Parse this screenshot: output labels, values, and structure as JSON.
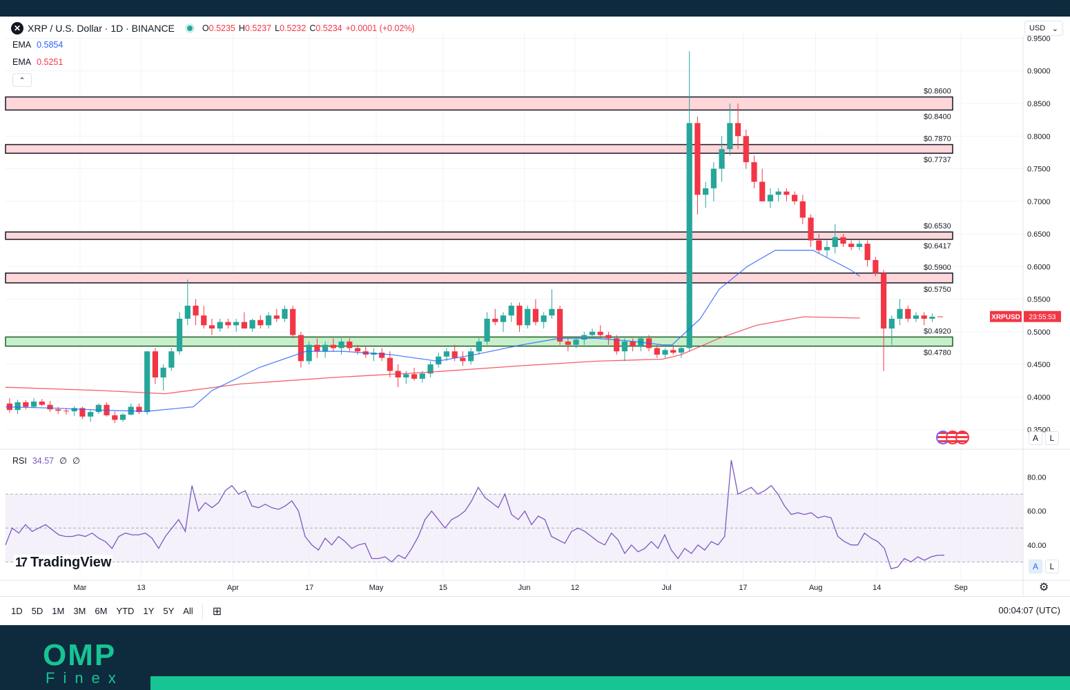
{
  "header": {
    "symbol_icon": "xrp-logo",
    "symbol_glyph": "✕",
    "title": "XRP / U.S. Dollar · 1D · BINANCE",
    "ohlc": {
      "o_label": "O",
      "o": "0.5235",
      "h_label": "H",
      "h": "0.5237",
      "l_label": "L",
      "l": "0.5232",
      "c_label": "C",
      "c": "0.5234",
      "change": "+0.0001 (+0.02%)"
    },
    "currency": "USD",
    "currency_chevron": "⌄"
  },
  "indicators": {
    "ema1": {
      "label": "EMA",
      "value": "0.5854",
      "color": "#2962ff"
    },
    "ema2": {
      "label": "EMA",
      "value": "0.5251",
      "color": "#f23645"
    },
    "collapse_glyph": "⌃",
    "rsi": {
      "label": "RSI",
      "value": "34.57",
      "extra1": "∅",
      "extra2": "∅",
      "color": "#7e57c2"
    }
  },
  "price_badge": {
    "symbol": "XRPUSD",
    "countdown": "23:55:53",
    "color": "#f23645"
  },
  "scale_buttons": {
    "auto": "A",
    "log": "L"
  },
  "watermark": "TradingView",
  "watermark_mark": "17",
  "bottom_bar": {
    "ranges": [
      "1D",
      "5D",
      "1M",
      "3M",
      "6M",
      "YTD",
      "1Y",
      "5Y",
      "All"
    ],
    "calendar_icon": "calendar-range-icon",
    "calendar_glyph": "⊞",
    "clock": "00:04:07 (UTC)"
  },
  "settings_glyph": "⚙",
  "brand": {
    "name": "OMP",
    "sub": "Finex"
  },
  "colors": {
    "up": "#26a69a",
    "down": "#f23645",
    "resistance_fill": "#ffd6d9",
    "support_fill": "#c8efcc"
  },
  "chart_data": {
    "type": "candlestick",
    "title": "XRP / U.S. Dollar · 1D · BINANCE",
    "y_axis": {
      "ticks": [
        "0.9500",
        "0.9000",
        "0.8500",
        "0.8000",
        "0.7500",
        "0.7000",
        "0.6500",
        "0.6000",
        "0.5500",
        "0.5000",
        "0.4500",
        "0.4000",
        "0.3500"
      ],
      "ylim": [
        0.32,
        0.96
      ]
    },
    "x_axis": {
      "ticks": [
        "Mar",
        "13",
        "Apr",
        "17",
        "May",
        "15",
        "Jun",
        "12",
        "Jul",
        "17",
        "Aug",
        "14",
        "Sep"
      ]
    },
    "zones": [
      {
        "kind": "resistance",
        "top": 0.86,
        "bottom": 0.84,
        "top_label": "$0.8600",
        "bottom_label": "$0.8400"
      },
      {
        "kind": "resistance",
        "top": 0.787,
        "bottom": 0.7737,
        "top_label": "$0.7870",
        "bottom_label": "$0.7737"
      },
      {
        "kind": "resistance",
        "top": 0.653,
        "bottom": 0.6417,
        "top_label": "$0.6530",
        "bottom_label": "$0.6417"
      },
      {
        "kind": "resistance",
        "top": 0.59,
        "bottom": 0.575,
        "top_label": "$0.5900",
        "bottom_label": "$0.5750"
      },
      {
        "kind": "support",
        "top": 0.492,
        "bottom": 0.478,
        "top_label": "$0.4920",
        "bottom_label": "$0.4780"
      }
    ],
    "ema_fast_path": [
      [
        0.0,
        0.385
      ],
      [
        0.05,
        0.383
      ],
      [
        0.1,
        0.38
      ],
      [
        0.15,
        0.378
      ],
      [
        0.2,
        0.385
      ],
      [
        0.22,
        0.41
      ],
      [
        0.27,
        0.445
      ],
      [
        0.32,
        0.47
      ],
      [
        0.36,
        0.47
      ],
      [
        0.41,
        0.465
      ],
      [
        0.46,
        0.455
      ],
      [
        0.5,
        0.465
      ],
      [
        0.55,
        0.48
      ],
      [
        0.59,
        0.49
      ],
      [
        0.63,
        0.49
      ],
      [
        0.67,
        0.485
      ],
      [
        0.7,
        0.48
      ],
      [
        0.71,
        0.48
      ],
      [
        0.74,
        0.52
      ],
      [
        0.76,
        0.565
      ],
      [
        0.79,
        0.6
      ],
      [
        0.82,
        0.625
      ],
      [
        0.84,
        0.625
      ],
      [
        0.86,
        0.625
      ],
      [
        0.88,
        0.61
      ],
      [
        0.9,
        0.595
      ],
      [
        0.91,
        0.585
      ]
    ],
    "ema_slow_path": [
      [
        0.0,
        0.415
      ],
      [
        0.1,
        0.41
      ],
      [
        0.17,
        0.405
      ],
      [
        0.25,
        0.42
      ],
      [
        0.35,
        0.43
      ],
      [
        0.45,
        0.438
      ],
      [
        0.55,
        0.448
      ],
      [
        0.63,
        0.455
      ],
      [
        0.7,
        0.458
      ],
      [
        0.72,
        0.465
      ],
      [
        0.76,
        0.49
      ],
      [
        0.8,
        0.51
      ],
      [
        0.85,
        0.523
      ],
      [
        0.91,
        0.521
      ]
    ],
    "candles": [
      {
        "o": 0.39,
        "h": 0.398,
        "l": 0.376,
        "c": 0.38
      },
      {
        "o": 0.38,
        "h": 0.396,
        "l": 0.374,
        "c": 0.392
      },
      {
        "o": 0.392,
        "h": 0.395,
        "l": 0.381,
        "c": 0.385
      },
      {
        "o": 0.385,
        "h": 0.398,
        "l": 0.383,
        "c": 0.393
      },
      {
        "o": 0.393,
        "h": 0.397,
        "l": 0.386,
        "c": 0.388
      },
      {
        "o": 0.388,
        "h": 0.394,
        "l": 0.377,
        "c": 0.381
      },
      {
        "o": 0.381,
        "h": 0.385,
        "l": 0.374,
        "c": 0.379
      },
      {
        "o": 0.379,
        "h": 0.383,
        "l": 0.373,
        "c": 0.378
      },
      {
        "o": 0.378,
        "h": 0.386,
        "l": 0.371,
        "c": 0.383
      },
      {
        "o": 0.383,
        "h": 0.385,
        "l": 0.366,
        "c": 0.37
      },
      {
        "o": 0.37,
        "h": 0.38,
        "l": 0.362,
        "c": 0.377
      },
      {
        "o": 0.377,
        "h": 0.39,
        "l": 0.374,
        "c": 0.388
      },
      {
        "o": 0.388,
        "h": 0.392,
        "l": 0.37,
        "c": 0.372
      },
      {
        "o": 0.372,
        "h": 0.378,
        "l": 0.36,
        "c": 0.365
      },
      {
        "o": 0.365,
        "h": 0.375,
        "l": 0.362,
        "c": 0.373
      },
      {
        "o": 0.373,
        "h": 0.39,
        "l": 0.372,
        "c": 0.385
      },
      {
        "o": 0.385,
        "h": 0.39,
        "l": 0.374,
        "c": 0.377
      },
      {
        "o": 0.377,
        "h": 0.47,
        "l": 0.373,
        "c": 0.47
      },
      {
        "o": 0.47,
        "h": 0.475,
        "l": 0.42,
        "c": 0.43
      },
      {
        "o": 0.43,
        "h": 0.45,
        "l": 0.41,
        "c": 0.445
      },
      {
        "o": 0.445,
        "h": 0.475,
        "l": 0.44,
        "c": 0.47
      },
      {
        "o": 0.47,
        "h": 0.53,
        "l": 0.465,
        "c": 0.52
      },
      {
        "o": 0.52,
        "h": 0.58,
        "l": 0.51,
        "c": 0.54
      },
      {
        "o": 0.54,
        "h": 0.55,
        "l": 0.51,
        "c": 0.525
      },
      {
        "o": 0.525,
        "h": 0.54,
        "l": 0.505,
        "c": 0.51
      },
      {
        "o": 0.51,
        "h": 0.52,
        "l": 0.495,
        "c": 0.505
      },
      {
        "o": 0.505,
        "h": 0.52,
        "l": 0.5,
        "c": 0.515
      },
      {
        "o": 0.515,
        "h": 0.52,
        "l": 0.505,
        "c": 0.51
      },
      {
        "o": 0.51,
        "h": 0.52,
        "l": 0.5,
        "c": 0.515
      },
      {
        "o": 0.515,
        "h": 0.53,
        "l": 0.505,
        "c": 0.505
      },
      {
        "o": 0.505,
        "h": 0.52,
        "l": 0.5,
        "c": 0.518
      },
      {
        "o": 0.518,
        "h": 0.525,
        "l": 0.505,
        "c": 0.51
      },
      {
        "o": 0.51,
        "h": 0.53,
        "l": 0.505,
        "c": 0.525
      },
      {
        "o": 0.525,
        "h": 0.535,
        "l": 0.515,
        "c": 0.52
      },
      {
        "o": 0.52,
        "h": 0.54,
        "l": 0.515,
        "c": 0.535
      },
      {
        "o": 0.535,
        "h": 0.54,
        "l": 0.49,
        "c": 0.495
      },
      {
        "o": 0.495,
        "h": 0.5,
        "l": 0.445,
        "c": 0.455
      },
      {
        "o": 0.455,
        "h": 0.485,
        "l": 0.45,
        "c": 0.48
      },
      {
        "o": 0.48,
        "h": 0.49,
        "l": 0.46,
        "c": 0.47
      },
      {
        "o": 0.47,
        "h": 0.485,
        "l": 0.46,
        "c": 0.48
      },
      {
        "o": 0.48,
        "h": 0.49,
        "l": 0.47,
        "c": 0.475
      },
      {
        "o": 0.475,
        "h": 0.49,
        "l": 0.465,
        "c": 0.485
      },
      {
        "o": 0.485,
        "h": 0.49,
        "l": 0.47,
        "c": 0.475
      },
      {
        "o": 0.475,
        "h": 0.48,
        "l": 0.465,
        "c": 0.47
      },
      {
        "o": 0.47,
        "h": 0.478,
        "l": 0.46,
        "c": 0.465
      },
      {
        "o": 0.465,
        "h": 0.475,
        "l": 0.455,
        "c": 0.468
      },
      {
        "o": 0.468,
        "h": 0.475,
        "l": 0.455,
        "c": 0.46
      },
      {
        "o": 0.46,
        "h": 0.47,
        "l": 0.43,
        "c": 0.44
      },
      {
        "o": 0.44,
        "h": 0.45,
        "l": 0.415,
        "c": 0.43
      },
      {
        "o": 0.43,
        "h": 0.44,
        "l": 0.42,
        "c": 0.435
      },
      {
        "o": 0.435,
        "h": 0.445,
        "l": 0.425,
        "c": 0.428
      },
      {
        "o": 0.428,
        "h": 0.44,
        "l": 0.422,
        "c": 0.436
      },
      {
        "o": 0.436,
        "h": 0.455,
        "l": 0.43,
        "c": 0.45
      },
      {
        "o": 0.45,
        "h": 0.468,
        "l": 0.445,
        "c": 0.462
      },
      {
        "o": 0.462,
        "h": 0.475,
        "l": 0.455,
        "c": 0.47
      },
      {
        "o": 0.47,
        "h": 0.48,
        "l": 0.455,
        "c": 0.46
      },
      {
        "o": 0.46,
        "h": 0.47,
        "l": 0.448,
        "c": 0.455
      },
      {
        "o": 0.455,
        "h": 0.475,
        "l": 0.45,
        "c": 0.47
      },
      {
        "o": 0.47,
        "h": 0.49,
        "l": 0.465,
        "c": 0.485
      },
      {
        "o": 0.485,
        "h": 0.53,
        "l": 0.48,
        "c": 0.52
      },
      {
        "o": 0.52,
        "h": 0.535,
        "l": 0.51,
        "c": 0.515
      },
      {
        "o": 0.515,
        "h": 0.53,
        "l": 0.5,
        "c": 0.525
      },
      {
        "o": 0.525,
        "h": 0.545,
        "l": 0.515,
        "c": 0.54
      },
      {
        "o": 0.54,
        "h": 0.545,
        "l": 0.5,
        "c": 0.51
      },
      {
        "o": 0.51,
        "h": 0.54,
        "l": 0.505,
        "c": 0.535
      },
      {
        "o": 0.535,
        "h": 0.55,
        "l": 0.51,
        "c": 0.515
      },
      {
        "o": 0.515,
        "h": 0.53,
        "l": 0.505,
        "c": 0.525
      },
      {
        "o": 0.525,
        "h": 0.565,
        "l": 0.52,
        "c": 0.535
      },
      {
        "o": 0.535,
        "h": 0.54,
        "l": 0.48,
        "c": 0.485
      },
      {
        "o": 0.485,
        "h": 0.49,
        "l": 0.47,
        "c": 0.48
      },
      {
        "o": 0.48,
        "h": 0.49,
        "l": 0.475,
        "c": 0.488
      },
      {
        "o": 0.488,
        "h": 0.5,
        "l": 0.48,
        "c": 0.495
      },
      {
        "o": 0.495,
        "h": 0.505,
        "l": 0.49,
        "c": 0.5
      },
      {
        "o": 0.5,
        "h": 0.51,
        "l": 0.49,
        "c": 0.495
      },
      {
        "o": 0.495,
        "h": 0.5,
        "l": 0.48,
        "c": 0.49
      },
      {
        "o": 0.49,
        "h": 0.495,
        "l": 0.465,
        "c": 0.47
      },
      {
        "o": 0.47,
        "h": 0.49,
        "l": 0.455,
        "c": 0.485
      },
      {
        "o": 0.485,
        "h": 0.49,
        "l": 0.47,
        "c": 0.478
      },
      {
        "o": 0.478,
        "h": 0.492,
        "l": 0.47,
        "c": 0.49
      },
      {
        "o": 0.49,
        "h": 0.495,
        "l": 0.47,
        "c": 0.475
      },
      {
        "o": 0.475,
        "h": 0.48,
        "l": 0.46,
        "c": 0.465
      },
      {
        "o": 0.465,
        "h": 0.475,
        "l": 0.46,
        "c": 0.472
      },
      {
        "o": 0.472,
        "h": 0.48,
        "l": 0.465,
        "c": 0.468
      },
      {
        "o": 0.468,
        "h": 0.478,
        "l": 0.46,
        "c": 0.475
      },
      {
        "o": 0.475,
        "h": 0.93,
        "l": 0.47,
        "c": 0.82
      },
      {
        "o": 0.82,
        "h": 0.83,
        "l": 0.68,
        "c": 0.71
      },
      {
        "o": 0.71,
        "h": 0.73,
        "l": 0.69,
        "c": 0.72
      },
      {
        "o": 0.72,
        "h": 0.76,
        "l": 0.7,
        "c": 0.75
      },
      {
        "o": 0.75,
        "h": 0.8,
        "l": 0.73,
        "c": 0.78
      },
      {
        "o": 0.78,
        "h": 0.85,
        "l": 0.77,
        "c": 0.82
      },
      {
        "o": 0.82,
        "h": 0.85,
        "l": 0.78,
        "c": 0.8
      },
      {
        "o": 0.8,
        "h": 0.81,
        "l": 0.75,
        "c": 0.76
      },
      {
        "o": 0.76,
        "h": 0.77,
        "l": 0.72,
        "c": 0.73
      },
      {
        "o": 0.73,
        "h": 0.75,
        "l": 0.7,
        "c": 0.7
      },
      {
        "o": 0.7,
        "h": 0.72,
        "l": 0.69,
        "c": 0.71
      },
      {
        "o": 0.71,
        "h": 0.72,
        "l": 0.7,
        "c": 0.715
      },
      {
        "o": 0.715,
        "h": 0.72,
        "l": 0.7,
        "c": 0.71
      },
      {
        "o": 0.71,
        "h": 0.715,
        "l": 0.695,
        "c": 0.7
      },
      {
        "o": 0.7,
        "h": 0.71,
        "l": 0.665,
        "c": 0.675
      },
      {
        "o": 0.675,
        "h": 0.68,
        "l": 0.63,
        "c": 0.64
      },
      {
        "o": 0.64,
        "h": 0.65,
        "l": 0.62,
        "c": 0.625
      },
      {
        "o": 0.625,
        "h": 0.64,
        "l": 0.615,
        "c": 0.63
      },
      {
        "o": 0.63,
        "h": 0.665,
        "l": 0.62,
        "c": 0.645
      },
      {
        "o": 0.645,
        "h": 0.65,
        "l": 0.63,
        "c": 0.635
      },
      {
        "o": 0.635,
        "h": 0.64,
        "l": 0.625,
        "c": 0.63
      },
      {
        "o": 0.63,
        "h": 0.64,
        "l": 0.625,
        "c": 0.635
      },
      {
        "o": 0.635,
        "h": 0.64,
        "l": 0.6,
        "c": 0.61
      },
      {
        "o": 0.61,
        "h": 0.615,
        "l": 0.585,
        "c": 0.59
      },
      {
        "o": 0.59,
        "h": 0.595,
        "l": 0.44,
        "c": 0.505
      },
      {
        "o": 0.505,
        "h": 0.525,
        "l": 0.48,
        "c": 0.52
      },
      {
        "o": 0.52,
        "h": 0.55,
        "l": 0.51,
        "c": 0.535
      },
      {
        "o": 0.535,
        "h": 0.54,
        "l": 0.515,
        "c": 0.52
      },
      {
        "o": 0.52,
        "h": 0.53,
        "l": 0.515,
        "c": 0.525
      },
      {
        "o": 0.525,
        "h": 0.53,
        "l": 0.51,
        "c": 0.52
      },
      {
        "o": 0.52,
        "h": 0.528,
        "l": 0.515,
        "c": 0.523
      },
      {
        "o": 0.5235,
        "h": 0.5237,
        "l": 0.5232,
        "c": 0.5234
      }
    ],
    "rsi": {
      "y_ticks": [
        "80.00",
        "60.00",
        "40.00"
      ],
      "ylim": [
        20,
        92
      ],
      "overbought": 70,
      "oversold": 30,
      "mid": 50,
      "values": [
        40,
        50,
        47,
        52,
        48,
        50,
        52,
        49,
        46,
        45,
        45,
        46,
        45,
        47,
        44,
        42,
        38,
        45,
        47,
        46,
        46,
        47,
        44,
        38,
        45,
        50,
        55,
        48,
        75,
        60,
        65,
        62,
        65,
        72,
        75,
        70,
        72,
        63,
        62,
        64,
        62,
        61,
        63,
        66,
        60,
        45,
        40,
        37,
        44,
        40,
        45,
        42,
        38,
        40,
        41,
        32,
        32,
        33,
        30,
        34,
        32,
        38,
        45,
        55,
        60,
        55,
        50,
        55,
        57,
        60,
        66,
        74,
        68,
        65,
        62,
        70,
        58,
        55,
        60,
        52,
        57,
        55,
        45,
        43,
        41,
        48,
        50,
        48,
        45,
        42,
        40,
        47,
        43,
        35,
        40,
        36,
        38,
        42,
        38,
        46,
        37,
        32,
        38,
        35,
        40,
        37,
        42,
        40,
        45,
        90,
        70,
        72,
        74,
        70,
        72,
        75,
        70,
        63,
        58,
        59,
        58,
        59,
        56,
        57,
        56,
        45,
        42,
        40,
        40,
        47,
        44,
        42,
        38,
        26,
        27,
        32,
        30,
        33,
        31,
        33,
        34,
        34
      ]
    }
  }
}
